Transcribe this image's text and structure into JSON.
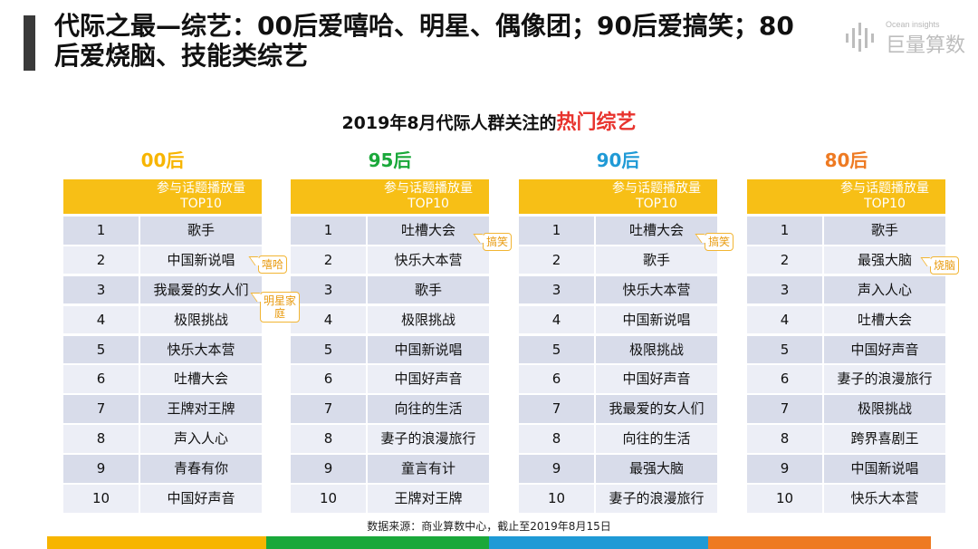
{
  "header": {
    "title": "代际之最—综艺：00后爱嘻哈、明星、偶像团；90后爱搞笑；80后爱烧脑、技能类综艺",
    "logo_en": "Ocean insights",
    "logo_cn": "巨量算数"
  },
  "subtitle": {
    "prefix": "2019年8月代际人群关注的",
    "highlight": "热门综艺"
  },
  "table_header_label": "参与话题播放量TOP10",
  "columns": [
    {
      "generation": "00后",
      "color": "#f7b500",
      "rows": [
        "歌手",
        "中国新说唱",
        "我最爱的女人们",
        "极限挑战",
        "快乐大本营",
        "吐槽大会",
        "王牌对王牌",
        "声入人心",
        "青春有你",
        "中国好声音"
      ]
    },
    {
      "generation": "95后",
      "color": "#1aa83a",
      "rows": [
        "吐槽大会",
        "快乐大本营",
        "歌手",
        "极限挑战",
        "中国新说唱",
        "中国好声音",
        "向往的生活",
        "妻子的浪漫旅行",
        "童言有计",
        "王牌对王牌"
      ]
    },
    {
      "generation": "90后",
      "color": "#1f9ad6",
      "rows": [
        "吐槽大会",
        "歌手",
        "快乐大本营",
        "中国新说唱",
        "极限挑战",
        "中国好声音",
        "我最爱的女人们",
        "向往的生活",
        "最强大脑",
        "妻子的浪漫旅行"
      ]
    },
    {
      "generation": "80后",
      "color": "#ee7a22",
      "rows": [
        "歌手",
        "最强大脑",
        "声入人心",
        "吐槽大会",
        "中国好声音",
        "妻子的浪漫旅行",
        "极限挑战",
        "跨界喜剧王",
        "中国新说唱",
        "快乐大本营"
      ]
    }
  ],
  "rank_numbers": [
    "1",
    "2",
    "3",
    "4",
    "5",
    "6",
    "7",
    "8",
    "9",
    "10"
  ],
  "tags": {
    "t00_1": "嘻哈",
    "t00_2": "明星家庭",
    "t95": "搞笑",
    "t90": "搞笑",
    "t80": "烧脑"
  },
  "source": "数据来源：商业算数中心，截止至2019年8月15日",
  "bottom_bar_colors": [
    "#f7b500",
    "#1aa83a",
    "#1f9ad6",
    "#ee7a22"
  ]
}
